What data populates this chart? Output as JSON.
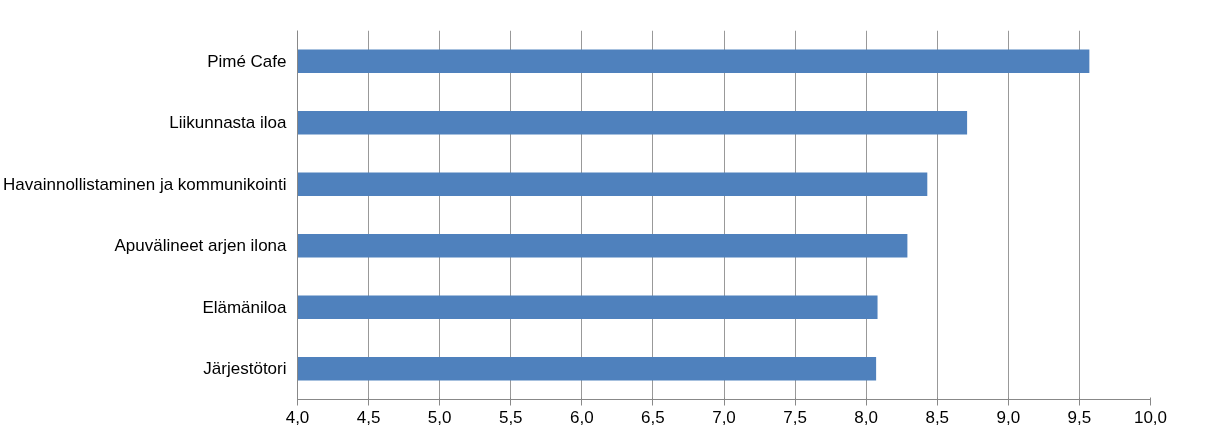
{
  "chart_data": {
    "type": "bar",
    "orientation": "horizontal",
    "categories": [
      "Pimé Cafe",
      "Liikunnasta iloa",
      "Havainnollistaminen ja kommunikointi",
      "Apuvälineet arjen ilona",
      "Elämäniloa",
      "Järjestötori"
    ],
    "values": [
      9.57,
      8.71,
      8.43,
      8.29,
      8.08,
      8.07
    ],
    "color": "#4f81bd",
    "xlim": [
      4.0,
      10.0
    ],
    "xticks": [
      {
        "value": 4.0,
        "label": "4,0"
      },
      {
        "value": 4.5,
        "label": "4,5"
      },
      {
        "value": 5.0,
        "label": "5,0"
      },
      {
        "value": 5.5,
        "label": "5,5"
      },
      {
        "value": 6.0,
        "label": "6,0"
      },
      {
        "value": 6.5,
        "label": "6,5"
      },
      {
        "value": 7.0,
        "label": "7,0"
      },
      {
        "value": 7.5,
        "label": "7,5"
      },
      {
        "value": 8.0,
        "label": "8,0"
      },
      {
        "value": 8.5,
        "label": "8,5"
      },
      {
        "value": 9.0,
        "label": "9,0"
      },
      {
        "value": 9.5,
        "label": "9,5"
      },
      {
        "value": 10.0,
        "label": "10,0"
      }
    ],
    "grid": "x"
  }
}
